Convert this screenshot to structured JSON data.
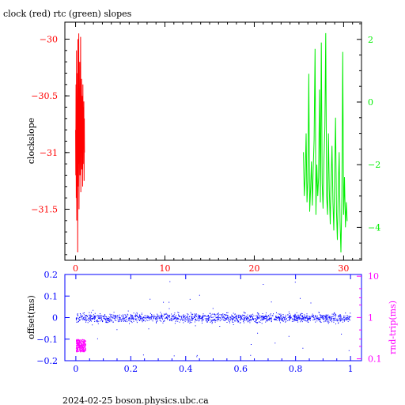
{
  "chart_data": [
    {
      "type": "line",
      "title": "clock (red) rtc (green) slopes",
      "ylabel": "clockslope",
      "xlim": [
        -1.2,
        32
      ],
      "x_ticks": [
        0,
        10,
        20,
        30
      ],
      "y_left_lim": [
        -31.95,
        -29.85
      ],
      "y_left_ticks": [
        -30,
        -30.5,
        -31,
        -31.5
      ],
      "y_right_lim": [
        -5.05,
        2.55
      ],
      "y_right_ticks": [
        2,
        0,
        -2,
        -4
      ],
      "grid": false,
      "series": [
        {
          "color": "#ff0000",
          "axis": "left",
          "x_range": [
            0,
            1
          ],
          "y_range": [
            -31.88,
            -29.95
          ],
          "values": [
            -30.8,
            -31.2,
            -30.4,
            -31.4,
            -30.1,
            -31.6,
            -30.6,
            -31.0,
            -30.3,
            -31.88,
            -30.0,
            -31.3,
            -30.5,
            -31.1,
            -29.95,
            -31.5,
            -30.7,
            -30.9,
            -30.2,
            -31.2,
            -30.45,
            -31.05,
            -29.98,
            -31.35,
            -30.55,
            -30.9,
            -30.35,
            -31.15,
            -30.65,
            -30.75,
            -30.5,
            -31.3,
            -30.4,
            -30.95,
            -30.6,
            -31.1,
            -30.55,
            -31.25,
            -30.7,
            -31.0
          ]
        },
        {
          "color": "#00ee00",
          "axis": "right",
          "x_range": [
            25.5,
            30.4
          ],
          "y_range": [
            -4.8,
            2.3
          ],
          "values": [
            -1.6,
            -3.0,
            -2.4,
            -1.0,
            -3.2,
            -2.5,
            0.9,
            -3.5,
            -2.8,
            -1.9,
            -3.3,
            -2.1,
            -1.2,
            1.7,
            -3.6,
            -2.0,
            -3.0,
            -2.4,
            0.4,
            -3.2,
            1.9,
            -2.6,
            -3.4,
            -1.8,
            -0.8,
            2.2,
            -3.0,
            -3.6,
            -1.0,
            -2.8,
            -3.9,
            -2.5,
            -1.4,
            -3.2,
            -4.1,
            -2.2,
            -0.5,
            -3.5,
            -4.4,
            -2.8,
            -1.6,
            -3.8,
            -4.8,
            -3.0,
            1.6,
            -3.6,
            -2.4,
            -4.0,
            -3.2,
            -3.8
          ]
        }
      ]
    },
    {
      "type": "scatter",
      "xlabel": "",
      "ylabel": "offset(ms)",
      "ylabel_right": "rnd-trip(ms)",
      "xlim": [
        -0.04,
        1.04
      ],
      "x_ticks": [
        0,
        0.2,
        0.4,
        0.6,
        0.8,
        1
      ],
      "ylim": [
        -0.2,
        0.2
      ],
      "y_ticks": [
        0.2,
        0.1,
        0,
        -0.1,
        -0.2
      ],
      "y_right_scale": "log",
      "y_right_lim": [
        0.09,
        11
      ],
      "y_right_ticks": [
        10,
        1,
        0.1
      ],
      "series": [
        {
          "color": "#0000ff",
          "axis": "left",
          "x_range": [
            0,
            1
          ],
          "y_center": 0.0,
          "y_spread": 0.03
        },
        {
          "color": "#ff00ff",
          "axis": "right",
          "x_range": [
            0,
            0.035
          ],
          "y_range": [
            0.15,
            0.3
          ]
        }
      ]
    }
  ],
  "footer": {
    "text": "2024-02-25  boson.physics.ubc.ca"
  }
}
